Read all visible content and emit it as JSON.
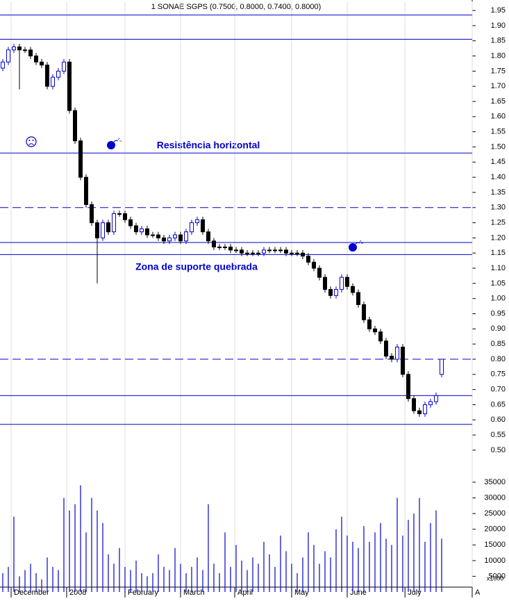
{
  "chart_data": {
    "type": "candlestick",
    "title": "1 SONAE SGPS (0.7500, 0.8000, 0.7400, 0.8000)",
    "annotations": [
      "Resistência horizontal",
      "Zona de suporte quebrada"
    ],
    "xlim": [
      -0.5,
      84.5
    ],
    "xticks": [
      {
        "value": 1.5,
        "label": "December"
      },
      {
        "value": 11.5,
        "label": "2008"
      },
      {
        "value": 22,
        "label": "February"
      },
      {
        "value": 32,
        "label": "March"
      },
      {
        "value": 41.75,
        "label": "April"
      },
      {
        "value": 52,
        "label": "May"
      },
      {
        "value": 62,
        "label": "June"
      },
      {
        "value": 72.4,
        "label": "July"
      },
      {
        "value": 84.5,
        "label": "A"
      }
    ],
    "ylim": [
      0.47,
      1.98
    ],
    "yticks": [
      {
        "value": 1.95,
        "label": "1.95"
      },
      {
        "value": 1.9,
        "label": "1.90"
      },
      {
        "value": 1.85,
        "label": "1.85"
      },
      {
        "value": 1.8,
        "label": "1.80"
      },
      {
        "value": 1.75,
        "label": "1.75"
      },
      {
        "value": 1.7,
        "label": "1.70"
      },
      {
        "value": 1.65,
        "label": "1.65"
      },
      {
        "value": 1.6,
        "label": "1.60"
      },
      {
        "value": 1.55,
        "label": "1.55"
      },
      {
        "value": 1.5,
        "label": "1.50"
      },
      {
        "value": 1.45,
        "label": "1.45"
      },
      {
        "value": 1.4,
        "label": "1.40"
      },
      {
        "value": 1.35,
        "label": "1.35"
      },
      {
        "value": 1.3,
        "label": "1.30"
      },
      {
        "value": 1.25,
        "label": "1.25"
      },
      {
        "value": 1.2,
        "label": "1.20"
      },
      {
        "value": 1.15,
        "label": "1.15"
      },
      {
        "value": 1.1,
        "label": "1.10"
      },
      {
        "value": 1.05,
        "label": "1.05"
      },
      {
        "value": 1.0,
        "label": "1.00"
      },
      {
        "value": 0.95,
        "label": "0.95"
      },
      {
        "value": 0.9,
        "label": "0.90"
      },
      {
        "value": 0.85,
        "label": "0.85"
      },
      {
        "value": 0.8,
        "label": "0.80"
      },
      {
        "value": 0.75,
        "label": "0.75"
      },
      {
        "value": 0.7,
        "label": "0.70"
      },
      {
        "value": 0.65,
        "label": "0.65"
      },
      {
        "value": 0.6,
        "label": "0.60"
      },
      {
        "value": 0.55,
        "label": "0.55"
      },
      {
        "value": 0.5,
        "label": "0.50"
      }
    ],
    "hlines": [
      {
        "value": 1.935,
        "style": "solid"
      },
      {
        "value": 1.855,
        "style": "solid"
      },
      {
        "value": 1.48,
        "style": "solid"
      },
      {
        "value": 1.3,
        "style": "dashed"
      },
      {
        "value": 1.185,
        "style": "solid"
      },
      {
        "value": 1.145,
        "style": "solid"
      },
      {
        "value": 0.8,
        "style": "dashed"
      },
      {
        "value": 0.68,
        "style": "solid"
      },
      {
        "value": 0.585,
        "style": "solid"
      }
    ],
    "line_color": "#0000cc",
    "up_color": "#ffffff",
    "down_color": "#000000",
    "open": [
      1.76,
      1.78,
      1.82,
      1.83,
      1.82,
      1.82,
      1.8,
      1.78,
      1.77,
      1.7,
      1.73,
      1.75,
      1.78,
      1.62,
      1.52,
      1.4,
      1.31,
      1.25,
      1.2,
      1.25,
      1.22,
      1.28,
      1.28,
      1.26,
      1.24,
      1.22,
      1.23,
      1.21,
      1.21,
      1.2,
      1.19,
      1.2,
      1.21,
      1.19,
      1.22,
      1.25,
      1.26,
      1.22,
      1.19,
      1.17,
      1.17,
      1.17,
      1.16,
      1.16,
      1.15,
      1.15,
      1.15,
      1.15,
      1.16,
      1.16,
      1.16,
      1.16,
      1.15,
      1.15,
      1.15,
      1.14,
      1.12,
      1.1,
      1.07,
      1.03,
      1.01,
      1.03,
      1.07,
      1.04,
      1.02,
      0.98,
      0.93,
      0.9,
      0.89,
      0.86,
      0.81,
      0.8,
      0.84,
      0.75,
      0.67,
      0.63,
      0.62,
      0.65,
      0.66,
      0.75
    ],
    "high": [
      1.79,
      1.83,
      1.84,
      1.84,
      1.83,
      1.83,
      1.81,
      1.79,
      1.78,
      1.74,
      1.76,
      1.79,
      1.79,
      1.63,
      1.53,
      1.41,
      1.32,
      1.26,
      1.26,
      1.26,
      1.29,
      1.29,
      1.29,
      1.27,
      1.25,
      1.24,
      1.24,
      1.22,
      1.22,
      1.21,
      1.21,
      1.22,
      1.22,
      1.23,
      1.26,
      1.27,
      1.27,
      1.23,
      1.2,
      1.18,
      1.18,
      1.18,
      1.17,
      1.17,
      1.16,
      1.16,
      1.16,
      1.17,
      1.17,
      1.17,
      1.17,
      1.17,
      1.16,
      1.16,
      1.16,
      1.15,
      1.13,
      1.11,
      1.08,
      1.04,
      1.04,
      1.08,
      1.08,
      1.05,
      1.03,
      0.99,
      0.94,
      0.91,
      0.9,
      0.87,
      0.82,
      0.85,
      0.85,
      0.76,
      0.68,
      0.64,
      0.66,
      0.67,
      0.69,
      0.8
    ],
    "low": [
      1.75,
      1.77,
      1.81,
      1.69,
      1.81,
      1.79,
      1.77,
      1.76,
      1.69,
      1.69,
      1.72,
      1.74,
      1.61,
      1.51,
      1.39,
      1.3,
      1.24,
      1.05,
      1.19,
      1.21,
      1.21,
      1.27,
      1.25,
      1.23,
      1.21,
      1.21,
      1.2,
      1.2,
      1.19,
      1.18,
      1.18,
      1.19,
      1.18,
      1.18,
      1.21,
      1.24,
      1.21,
      1.18,
      1.16,
      1.16,
      1.16,
      1.15,
      1.15,
      1.14,
      1.14,
      1.14,
      1.14,
      1.14,
      1.15,
      1.15,
      1.15,
      1.14,
      1.14,
      1.14,
      1.13,
      1.11,
      1.09,
      1.06,
      1.02,
      1.0,
      1.0,
      1.02,
      1.03,
      1.01,
      0.97,
      0.92,
      0.89,
      0.88,
      0.85,
      0.8,
      0.79,
      0.79,
      0.74,
      0.66,
      0.62,
      0.61,
      0.61,
      0.64,
      0.65,
      0.74
    ],
    "close": [
      1.78,
      1.82,
      1.83,
      1.82,
      1.82,
      1.8,
      1.78,
      1.77,
      1.7,
      1.73,
      1.75,
      1.78,
      1.62,
      1.52,
      1.4,
      1.31,
      1.25,
      1.2,
      1.25,
      1.22,
      1.28,
      1.28,
      1.26,
      1.24,
      1.22,
      1.23,
      1.21,
      1.21,
      1.2,
      1.19,
      1.2,
      1.21,
      1.19,
      1.22,
      1.25,
      1.26,
      1.22,
      1.19,
      1.17,
      1.17,
      1.17,
      1.16,
      1.16,
      1.15,
      1.15,
      1.15,
      1.15,
      1.16,
      1.16,
      1.16,
      1.16,
      1.15,
      1.15,
      1.15,
      1.14,
      1.12,
      1.1,
      1.07,
      1.03,
      1.01,
      1.03,
      1.07,
      1.04,
      1.02,
      0.98,
      0.93,
      0.9,
      0.89,
      0.86,
      0.81,
      0.8,
      0.84,
      0.75,
      0.67,
      0.63,
      0.62,
      0.65,
      0.66,
      0.68,
      0.8
    ],
    "volume": [
      6000,
      8000,
      24000,
      5000,
      7000,
      9000,
      6000,
      4000,
      11000,
      8000,
      7000,
      30000,
      26000,
      28000,
      34000,
      19000,
      30000,
      26000,
      22000,
      12000,
      9000,
      14000,
      8000,
      7000,
      10000,
      6000,
      5000,
      6000,
      12000,
      8000,
      7000,
      14000,
      9000,
      6000,
      8000,
      11000,
      7000,
      28000,
      9000,
      6000,
      19000,
      8000,
      15000,
      10000,
      7000,
      11000,
      9000,
      16000,
      12000,
      8000,
      18000,
      13000,
      9000,
      6000,
      11000,
      19000,
      15000,
      9000,
      13000,
      11000,
      20000,
      24000,
      18000,
      16000,
      14000,
      21000,
      16000,
      19000,
      22000,
      17000,
      15000,
      30000,
      18000,
      23000,
      25000,
      30000,
      16000,
      22000,
      26000,
      17000
    ],
    "volume_color": "#0000cc",
    "volume_ylim": [
      0,
      37000
    ],
    "volume_yticks": [
      5000,
      10000,
      15000,
      20000,
      25000,
      30000,
      35000
    ],
    "volume_unit_label": "x1000"
  }
}
